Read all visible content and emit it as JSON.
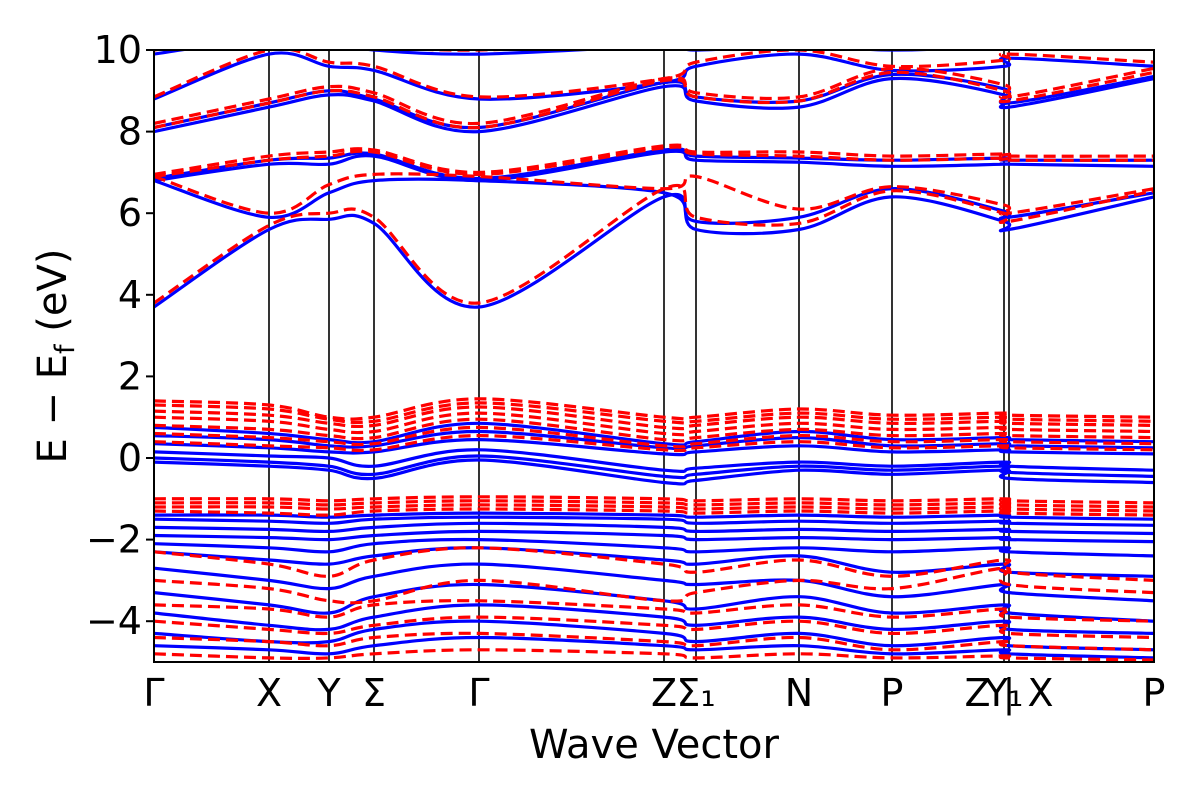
{
  "chart_data": {
    "type": "line",
    "xlabel": "Wave Vector",
    "ylabel": "E − E",
    "ylabel_sub": "f",
    "ylabel_unit": " (eV)",
    "ylim": [
      -5,
      10
    ],
    "xlim": [
      0,
      10.0
    ],
    "yticks": [
      -4,
      -2,
      0,
      2,
      4,
      6,
      8,
      10
    ],
    "ytick_labels": [
      "−4",
      "−2",
      "0",
      "2",
      "4",
      "6",
      "8",
      "10"
    ],
    "kpoints": [
      {
        "x": 0.0,
        "label": "Γ"
      },
      {
        "x": 1.15,
        "label": "X"
      },
      {
        "x": 1.75,
        "label": "Y"
      },
      {
        "x": 2.2,
        "label": "Σ"
      },
      {
        "x": 3.25,
        "label": "Γ"
      },
      {
        "x": 5.1,
        "label": "Z"
      },
      {
        "x": 5.42,
        "label": "Σ₁"
      },
      {
        "x": 6.45,
        "label": "N"
      },
      {
        "x": 7.38,
        "label": "P"
      },
      {
        "x": 8.5,
        "label": "Y₁"
      },
      {
        "x": 8.55,
        "label": "Z | X"
      },
      {
        "x": 10.0,
        "label": "P"
      }
    ],
    "series": [
      {
        "color": "#0000ff",
        "style": "solid",
        "bands": [
          [
            -4.6,
            -4.7,
            -4.8,
            -4.6,
            -4.4,
            -4.6,
            -4.7,
            -4.6,
            -4.8,
            -4.7,
            -4.8,
            -4.9
          ],
          [
            -4.3,
            -4.5,
            -4.5,
            -4.2,
            -4.0,
            -4.3,
            -4.5,
            -4.3,
            -4.6,
            -4.4,
            -4.6,
            -4.7
          ],
          [
            -3.8,
            -4.1,
            -4.2,
            -3.9,
            -3.6,
            -3.9,
            -4.1,
            -3.9,
            -4.2,
            -4.0,
            -4.2,
            -4.3
          ],
          [
            -3.3,
            -3.6,
            -3.8,
            -3.4,
            -3.1,
            -3.5,
            -3.7,
            -3.4,
            -3.8,
            -3.6,
            -3.8,
            -4.0
          ],
          [
            -2.7,
            -3.0,
            -3.2,
            -2.9,
            -2.6,
            -3.0,
            -3.1,
            -3.0,
            -3.4,
            -3.1,
            -3.3,
            -3.5
          ],
          [
            -2.3,
            -2.5,
            -2.6,
            -2.4,
            -2.2,
            -2.5,
            -2.6,
            -2.4,
            -2.8,
            -2.6,
            -2.8,
            -2.9
          ],
          [
            -2.1,
            -2.2,
            -2.3,
            -2.1,
            -2.0,
            -2.2,
            -2.3,
            -2.2,
            -2.3,
            -2.2,
            -2.3,
            -2.4
          ],
          [
            -1.9,
            -1.95,
            -2.0,
            -1.9,
            -1.8,
            -1.9,
            -2.0,
            -1.95,
            -2.0,
            -1.95,
            -2.0,
            -2.05
          ],
          [
            -1.7,
            -1.75,
            -1.8,
            -1.7,
            -1.6,
            -1.7,
            -1.8,
            -1.75,
            -1.8,
            -1.75,
            -1.8,
            -1.85
          ],
          [
            -1.5,
            -1.55,
            -1.6,
            -1.5,
            -1.45,
            -1.5,
            -1.6,
            -1.55,
            -1.6,
            -1.55,
            -1.6,
            -1.65
          ],
          [
            -1.4,
            -1.4,
            -1.45,
            -1.4,
            -1.35,
            -1.4,
            -1.45,
            -1.4,
            -1.45,
            -1.4,
            -1.45,
            -1.5
          ],
          [
            -0.1,
            -0.2,
            -0.3,
            -0.5,
            -0.05,
            -0.6,
            -0.55,
            -0.3,
            -0.4,
            -0.3,
            -0.5,
            -0.6
          ],
          [
            0.0,
            -0.1,
            -0.2,
            -0.4,
            0.05,
            -0.45,
            -0.4,
            -0.2,
            -0.3,
            -0.2,
            -0.35,
            -0.45
          ],
          [
            0.15,
            0.05,
            0.0,
            -0.2,
            0.2,
            -0.3,
            -0.25,
            -0.1,
            -0.2,
            -0.1,
            -0.2,
            -0.3
          ],
          [
            0.35,
            0.25,
            0.15,
            0.15,
            0.45,
            0.1,
            0.15,
            0.3,
            0.15,
            0.2,
            0.15,
            0.1
          ],
          [
            0.55,
            0.45,
            0.3,
            0.3,
            0.65,
            0.25,
            0.3,
            0.5,
            0.3,
            0.35,
            0.3,
            0.25
          ],
          [
            0.75,
            0.6,
            0.45,
            0.4,
            0.85,
            0.35,
            0.4,
            0.65,
            0.45,
            0.5,
            0.45,
            0.4
          ],
          [
            3.7,
            5.6,
            5.85,
            5.75,
            3.7,
            6.4,
            5.6,
            5.6,
            6.4,
            5.8,
            5.6,
            6.4
          ],
          [
            6.8,
            5.9,
            6.5,
            6.8,
            6.8,
            6.5,
            5.8,
            5.9,
            6.6,
            6.05,
            5.9,
            6.5
          ],
          [
            6.8,
            7.2,
            7.2,
            7.4,
            6.8,
            7.5,
            7.3,
            7.25,
            7.15,
            7.2,
            7.2,
            7.15
          ],
          [
            6.85,
            7.3,
            7.35,
            7.45,
            6.85,
            7.55,
            7.4,
            7.35,
            7.3,
            7.35,
            7.3,
            7.3
          ],
          [
            8.0,
            8.6,
            8.9,
            8.75,
            8.0,
            9.1,
            8.75,
            8.6,
            9.3,
            8.9,
            8.6,
            9.3
          ],
          [
            8.1,
            8.7,
            9.0,
            8.8,
            8.1,
            9.2,
            8.85,
            8.75,
            9.4,
            9.05,
            8.7,
            9.35
          ],
          [
            8.8,
            9.9,
            9.6,
            9.5,
            8.8,
            9.2,
            9.6,
            9.9,
            9.5,
            9.6,
            9.8,
            9.6
          ],
          [
            9.9,
            10.3,
            10.2,
            10.0,
            9.9,
            10.1,
            10.0,
            10.1,
            10.0,
            10.1,
            10.2,
            10.1
          ]
        ]
      },
      {
        "color": "#ff0000",
        "style": "dashed",
        "bands": [
          [
            -4.8,
            -4.9,
            -4.9,
            -4.8,
            -4.7,
            -4.8,
            -4.9,
            -4.8,
            -4.9,
            -4.85,
            -4.9,
            -4.95
          ],
          [
            -4.4,
            -4.5,
            -4.6,
            -4.4,
            -4.3,
            -4.5,
            -4.6,
            -4.4,
            -4.7,
            -4.5,
            -4.6,
            -4.7
          ],
          [
            -4.0,
            -4.2,
            -4.3,
            -4.1,
            -3.9,
            -4.1,
            -4.2,
            -4.0,
            -4.3,
            -4.1,
            -4.3,
            -4.4
          ],
          [
            -3.6,
            -3.7,
            -3.9,
            -3.6,
            -3.5,
            -3.7,
            -3.8,
            -3.6,
            -3.9,
            -3.7,
            -3.9,
            -4.0
          ],
          [
            -3.0,
            -3.2,
            -3.5,
            -3.5,
            -3.0,
            -3.5,
            -3.3,
            -3.0,
            -3.2,
            -2.7,
            -3.1,
            -3.3
          ],
          [
            -2.3,
            -2.6,
            -2.9,
            -2.5,
            -2.2,
            -2.6,
            -2.8,
            -2.5,
            -2.9,
            -2.5,
            -2.8,
            -3.0
          ],
          [
            -1.3,
            -1.35,
            -1.4,
            -1.3,
            -1.25,
            -1.3,
            -1.35,
            -1.3,
            -1.35,
            -1.3,
            -1.35,
            -1.4
          ],
          [
            -1.2,
            -1.2,
            -1.25,
            -1.2,
            -1.15,
            -1.2,
            -1.25,
            -1.2,
            -1.25,
            -1.2,
            -1.25,
            -1.3
          ],
          [
            -1.1,
            -1.1,
            -1.15,
            -1.1,
            -1.05,
            -1.1,
            -1.15,
            -1.1,
            -1.15,
            -1.1,
            -1.15,
            -1.2
          ],
          [
            -1.0,
            -1.0,
            -1.05,
            -1.0,
            -0.95,
            -1.0,
            -1.05,
            -1.0,
            -1.05,
            -1.0,
            -1.05,
            -1.1
          ],
          [
            0.4,
            0.3,
            0.25,
            0.2,
            0.55,
            0.2,
            0.25,
            0.4,
            0.25,
            0.3,
            0.25,
            0.2
          ],
          [
            0.6,
            0.5,
            0.4,
            0.35,
            0.75,
            0.3,
            0.35,
            0.55,
            0.4,
            0.45,
            0.4,
            0.35
          ],
          [
            0.8,
            0.7,
            0.55,
            0.5,
            0.95,
            0.45,
            0.5,
            0.7,
            0.55,
            0.6,
            0.55,
            0.5
          ],
          [
            1.0,
            0.9,
            0.7,
            0.65,
            1.1,
            0.6,
            0.65,
            0.85,
            0.7,
            0.75,
            0.7,
            0.65
          ],
          [
            1.15,
            1.05,
            0.85,
            0.8,
            1.25,
            0.75,
            0.8,
            1.0,
            0.85,
            0.9,
            0.85,
            0.8
          ],
          [
            1.3,
            1.2,
            0.95,
            0.9,
            1.35,
            0.9,
            0.9,
            1.1,
            0.95,
            1.0,
            0.95,
            0.9
          ],
          [
            1.4,
            1.3,
            1.0,
            1.0,
            1.45,
            1.0,
            1.0,
            1.2,
            1.05,
            1.1,
            1.05,
            1.0
          ],
          [
            3.8,
            5.7,
            6.0,
            5.9,
            3.8,
            6.6,
            5.9,
            5.75,
            6.55,
            6.0,
            5.8,
            6.55
          ],
          [
            6.9,
            6.0,
            6.7,
            6.95,
            6.9,
            6.6,
            6.9,
            6.1,
            6.65,
            6.2,
            6.0,
            6.6
          ],
          [
            6.9,
            7.3,
            7.4,
            7.5,
            6.95,
            7.6,
            7.45,
            7.4,
            7.3,
            7.35,
            7.3,
            7.3
          ],
          [
            6.95,
            7.4,
            7.5,
            7.55,
            7.0,
            7.65,
            7.5,
            7.5,
            7.4,
            7.45,
            7.4,
            7.4
          ],
          [
            8.1,
            8.7,
            9.0,
            8.85,
            8.1,
            9.25,
            8.85,
            8.75,
            9.45,
            9.0,
            8.75,
            9.45
          ],
          [
            8.2,
            8.8,
            9.1,
            8.95,
            8.2,
            9.3,
            8.95,
            8.85,
            9.55,
            9.15,
            8.85,
            9.55
          ],
          [
            8.85,
            10.0,
            9.7,
            9.6,
            8.85,
            9.3,
            9.7,
            10.0,
            9.6,
            9.75,
            9.9,
            9.7
          ],
          [
            10.0,
            10.4,
            10.3,
            10.1,
            10.0,
            10.2,
            10.1,
            10.2,
            10.1,
            10.2,
            10.3,
            10.2
          ]
        ]
      }
    ]
  }
}
